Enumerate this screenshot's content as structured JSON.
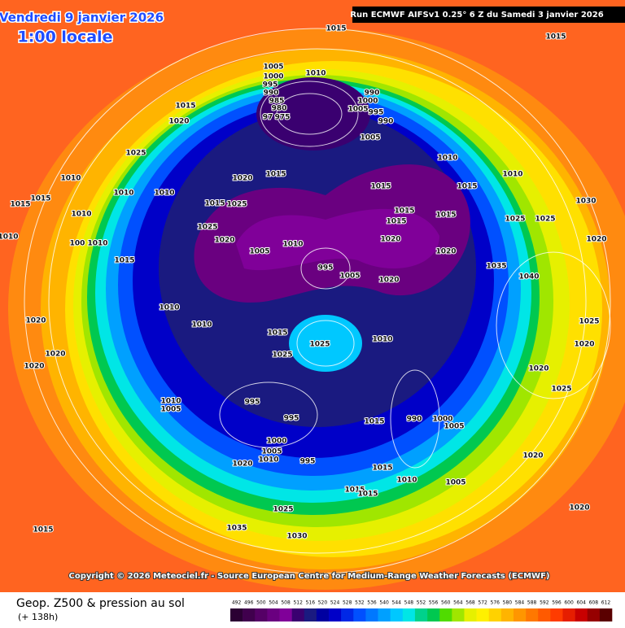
{
  "header": {
    "date": "Vendredi 9 janvier 2026",
    "time": "1:00 locale",
    "run": "Run ECMWF AIFSv1 0.25° 6 Z du Samedi 3 janvier 2026"
  },
  "copyright": "Copyright © 2026 Meteociel.fr - Source European Centre for Medium-Range Weather Forecasts (ECMWF)",
  "legend": {
    "title": "Geop. Z500 & pression au sol",
    "lead": "(+ 138h)"
  },
  "colorbar": {
    "ticks": [
      492,
      496,
      500,
      504,
      508,
      512,
      516,
      520,
      524,
      528,
      532,
      536,
      540,
      544,
      548,
      552,
      556,
      560,
      564,
      568,
      572,
      576,
      580,
      584,
      588,
      592,
      596,
      600,
      604,
      608,
      612
    ],
    "colors": [
      "#2b0033",
      "#40004d",
      "#550066",
      "#6a0080",
      "#800099",
      "#3a0070",
      "#1a1a80",
      "#0000a0",
      "#0000c8",
      "#0028e6",
      "#0050ff",
      "#0078ff",
      "#00a0ff",
      "#00c8ff",
      "#00e6e6",
      "#00d28c",
      "#00c850",
      "#50dc00",
      "#a0e600",
      "#e6f000",
      "#fff000",
      "#ffd200",
      "#ffb400",
      "#ff9600",
      "#ff7800",
      "#ff5a00",
      "#ff3c00",
      "#e61e00",
      "#c80000",
      "#960000",
      "#5a0000"
    ]
  },
  "isobars": [
    1015,
    1015,
    1005,
    1010,
    1000,
    995,
    990,
    985,
    980,
    97,
    975,
    990,
    1000,
    1005,
    995,
    990,
    1005,
    1015,
    1020,
    1025,
    1010,
    1015,
    1015,
    1010,
    1010,
    100,
    1010,
    1010,
    1010,
    1020,
    1015,
    1010,
    1010,
    1015,
    1015,
    1030,
    1015,
    1025,
    1025,
    1020,
    1010,
    1005,
    1015,
    1015,
    1015,
    1025,
    1025,
    1020,
    1020,
    995,
    1005,
    1020,
    1015,
    1010,
    1010,
    1015,
    1025,
    1025,
    1010,
    1020,
    1020,
    1020,
    1020,
    1010,
    1005,
    995,
    995,
    1000,
    1005,
    1010,
    1020,
    995,
    1015,
    990,
    1000,
    1005,
    1015,
    1010,
    1005,
    1015,
    1015,
    1025,
    1035,
    1030,
    1015,
    1020,
    1020,
    1020,
    1025,
    1020,
    1025,
    1040,
    1035
  ]
}
